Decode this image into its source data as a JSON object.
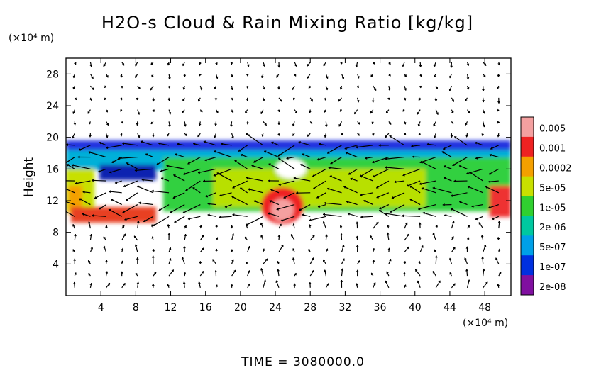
{
  "chart_data": {
    "type": "heatmap",
    "title": "H2O-s Cloud & Rain Mixing Ratio [kg/kg]",
    "ylabel": "Height",
    "y_unit": "(×10⁴ m)",
    "x_unit": "(×10⁴ m)",
    "xlabel": "",
    "xlim": [
      0,
      51
    ],
    "ylim": [
      0,
      30
    ],
    "x_ticks": [
      4,
      8,
      12,
      16,
      20,
      24,
      28,
      32,
      36,
      40,
      44,
      48
    ],
    "y_ticks": [
      4,
      8,
      12,
      16,
      20,
      24,
      28
    ],
    "time_label": "TIME = 3080000.0",
    "colorbar": {
      "labels": [
        "0.005",
        "0.001",
        "0.0002",
        "5e-05",
        "1e-05",
        "2e-06",
        "5e-07",
        "1e-07",
        "2e-08"
      ],
      "colors": [
        "#f4a0a0",
        "#ee2222",
        "#f4a000",
        "#c8e000",
        "#30d030",
        "#00c8a0",
        "#00a0e8",
        "#0030e0",
        "#8010a0"
      ]
    },
    "overlay": "wind vectors (arrows)"
  }
}
